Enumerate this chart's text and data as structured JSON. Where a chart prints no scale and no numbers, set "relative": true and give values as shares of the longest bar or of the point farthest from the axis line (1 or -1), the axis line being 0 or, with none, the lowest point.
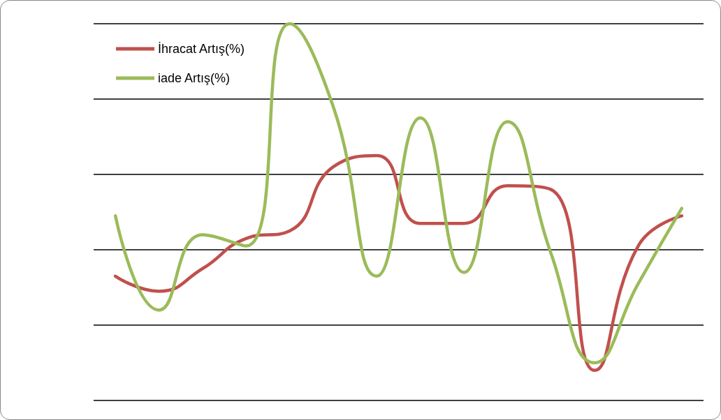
{
  "chart_data": {
    "type": "line",
    "relative": true,
    "categories": [
      null,
      null,
      null,
      null,
      null,
      null,
      null,
      null,
      null,
      null,
      null,
      null,
      null,
      null
    ],
    "series": [
      {
        "name": "İhracat Artış(%)",
        "color": "#c0504d",
        "values": [
          0.33,
          0.29,
          0.35,
          0.43,
          0.45,
          0.62,
          0.65,
          0.47,
          0.47,
          0.57,
          0.56,
          0.08,
          0.41,
          0.49
        ]
      },
      {
        "name": "iade Artış(%)",
        "color": "#9bbb59",
        "values": [
          0.49,
          0.24,
          0.44,
          0.41,
          1,
          0.78,
          0.33,
          0.75,
          0.34,
          0.74,
          0.39,
          0.1,
          0.31,
          0.51
        ]
      }
    ],
    "grid": "y",
    "legend": "top left",
    "marker": "none",
    "line_style": "solid"
  }
}
